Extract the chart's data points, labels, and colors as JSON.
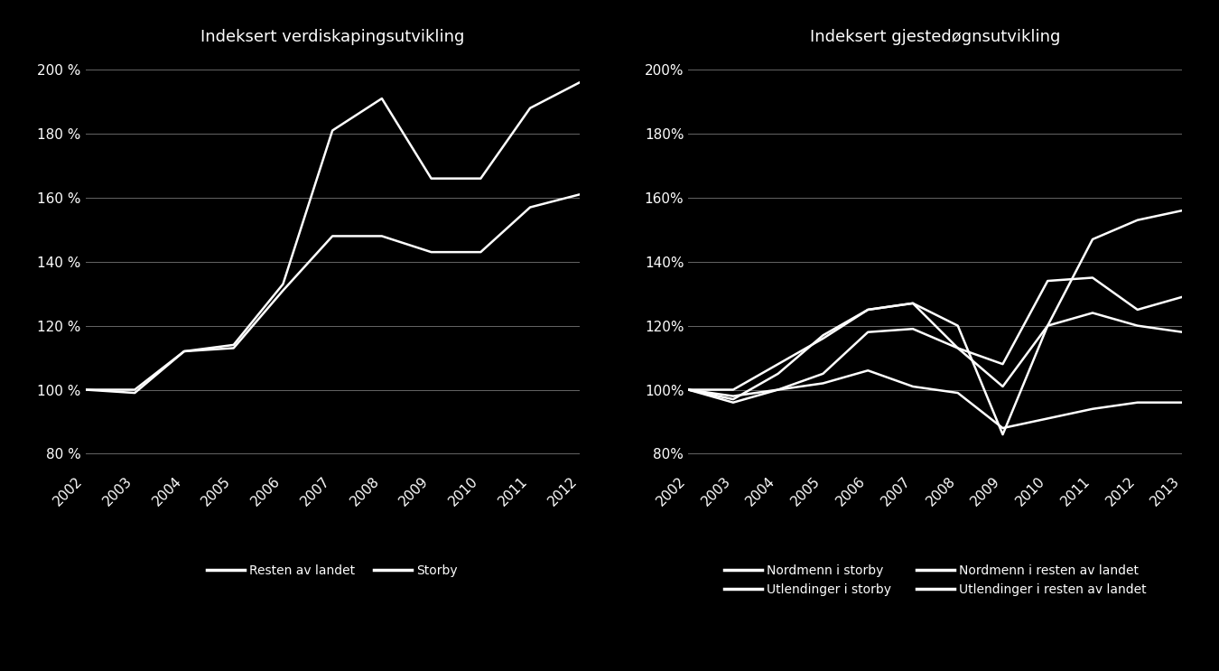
{
  "background_color": "#000000",
  "text_color": "#ffffff",
  "line_color": "#ffffff",
  "grid_color": "#666666",
  "left_title": "Indeksert verdiskapingsutvikling",
  "left_years": [
    2002,
    2003,
    2004,
    2005,
    2006,
    2007,
    2008,
    2009,
    2010,
    2011,
    2012
  ],
  "left_resten": [
    100,
    100,
    112,
    113,
    131,
    148,
    148,
    143,
    143,
    157,
    161
  ],
  "left_storby": [
    100,
    99,
    112,
    114,
    133,
    181,
    191,
    166,
    166,
    188,
    196
  ],
  "left_legend": [
    "Resten av landet",
    "Storby"
  ],
  "left_ylim": [
    75,
    205
  ],
  "left_yticks": [
    80,
    100,
    120,
    140,
    160,
    180,
    200
  ],
  "left_ytick_labels": [
    "80 %",
    "100 %",
    "120 %",
    "140 %",
    "160 %",
    "180 %",
    "200 %"
  ],
  "right_title": "Indeksert gjestedøgnsutvikling",
  "right_years": [
    2002,
    2003,
    2004,
    2005,
    2006,
    2007,
    2008,
    2009,
    2010,
    2011,
    2012,
    2013
  ],
  "right_nordmenn_storby": [
    100,
    100,
    108,
    116,
    125,
    127,
    113,
    108,
    134,
    135,
    125,
    129
  ],
  "right_utlendinger_storby": [
    100,
    97,
    105,
    117,
    125,
    127,
    120,
    86,
    120,
    147,
    153,
    156
  ],
  "right_nordmenn_resten": [
    100,
    96,
    100,
    105,
    118,
    119,
    113,
    101,
    120,
    124,
    120,
    118
  ],
  "right_utlendinger_resten": [
    100,
    98,
    100,
    102,
    106,
    101,
    99,
    88,
    91,
    94,
    96,
    96
  ],
  "right_legend_col1": [
    "Nordmenn i storby",
    "Nordmenn i resten av landet"
  ],
  "right_legend_col2": [
    "Utlendinger i storby",
    "Utlendinger i resten av landet"
  ],
  "right_ylim": [
    75,
    205
  ],
  "right_yticks": [
    80,
    100,
    120,
    140,
    160,
    180,
    200
  ],
  "right_ytick_labels": [
    "80%",
    "100%",
    "120%",
    "140%",
    "160%",
    "180%",
    "200%"
  ],
  "title_fontsize": 13,
  "tick_fontsize": 11,
  "legend_fontsize": 10,
  "linewidth": 1.8
}
